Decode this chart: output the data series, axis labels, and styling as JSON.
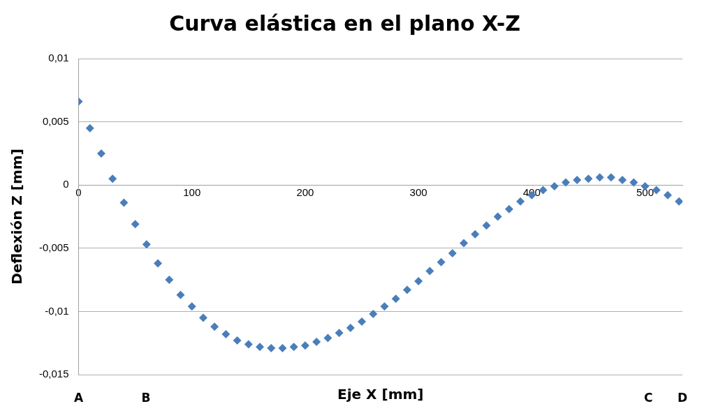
{
  "chart_data": {
    "type": "scatter",
    "title": "Curva elástica en el plano X-Z",
    "xlabel": "Eje X [mm]",
    "ylabel": "Deflexión Z [mm]",
    "x": [
      0,
      10,
      20,
      30,
      40,
      50,
      60,
      70,
      80,
      90,
      100,
      110,
      120,
      130,
      140,
      150,
      160,
      170,
      180,
      190,
      200,
      210,
      220,
      230,
      240,
      250,
      260,
      270,
      280,
      290,
      300,
      310,
      320,
      330,
      340,
      350,
      360,
      370,
      380,
      390,
      400,
      410,
      420,
      430,
      440,
      450,
      460,
      470,
      480,
      490,
      500,
      510,
      520,
      530
    ],
    "series": [
      {
        "color": "#4a7ebb",
        "values": [
          0.0066,
          0.0045,
          0.0025,
          0.0005,
          -0.0014,
          -0.0031,
          -0.0047,
          -0.0062,
          -0.0075,
          -0.0087,
          -0.0096,
          -0.0105,
          -0.0112,
          -0.0118,
          -0.0123,
          -0.0126,
          -0.0128,
          -0.0129,
          -0.0129,
          -0.0128,
          -0.0127,
          -0.0124,
          -0.0121,
          -0.0117,
          -0.0113,
          -0.0108,
          -0.0102,
          -0.0096,
          -0.009,
          -0.0083,
          -0.0076,
          -0.0068,
          -0.0061,
          -0.0054,
          -0.0046,
          -0.0039,
          -0.0032,
          -0.0025,
          -0.0019,
          -0.0013,
          -0.0008,
          -0.0004,
          -0.0001,
          0.0002,
          0.0004,
          0.0005,
          0.0006,
          0.0006,
          0.0004,
          0.0002,
          -0.0001,
          -0.0004,
          -0.0008,
          -0.0013
        ]
      }
    ],
    "xlim": [
      0,
      533
    ],
    "xticks": [
      0,
      100,
      200,
      300,
      400,
      500
    ],
    "ylim": [
      -0.015,
      0.01
    ],
    "yticks": [
      {
        "value": -0.015,
        "label": "-0,015"
      },
      {
        "value": -0.01,
        "label": "-0,01"
      },
      {
        "value": -0.005,
        "label": "-0,005"
      },
      {
        "value": 0,
        "label": "0"
      },
      {
        "value": 0.005,
        "label": "0,005"
      },
      {
        "value": 0.01,
        "label": "0,01"
      }
    ],
    "grid": "y",
    "legend": false,
    "marker": "diamond",
    "annotations": [
      "A",
      "B",
      "C",
      "D"
    ]
  }
}
